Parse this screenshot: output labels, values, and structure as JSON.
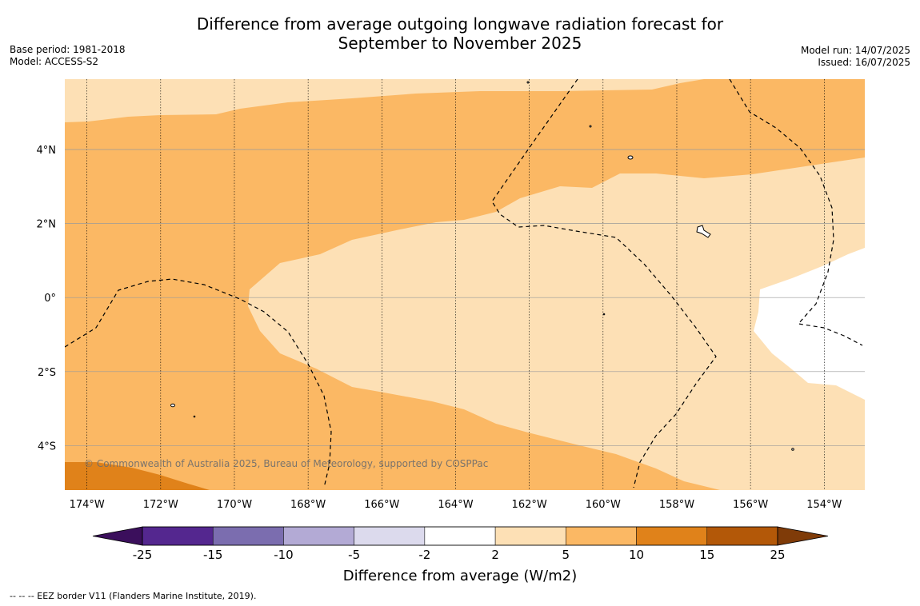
{
  "header": {
    "title_line1": "Difference from average outgoing longwave radiation forecast for",
    "title_line2": "September to November 2025",
    "base_period": "Base period: 1981-2018",
    "model": "Model: ACCESS-S2",
    "model_run": "Model run: 14/07/2025",
    "issued": "Issued: 16/07/2025"
  },
  "map": {
    "lon_range": [
      -174.6,
      -152.9
    ],
    "lat_range": [
      -5.2,
      5.9
    ],
    "lon_ticks": [
      {
        "value": -174,
        "label": "174°W"
      },
      {
        "value": -172,
        "label": "172°W"
      },
      {
        "value": -170,
        "label": "170°W"
      },
      {
        "value": -168,
        "label": "168°W"
      },
      {
        "value": -166,
        "label": "166°W"
      },
      {
        "value": -164,
        "label": "164°W"
      },
      {
        "value": -162,
        "label": "162°W"
      },
      {
        "value": -160,
        "label": "160°W"
      },
      {
        "value": -158,
        "label": "158°W"
      },
      {
        "value": -156,
        "label": "156°W"
      },
      {
        "value": -154,
        "label": "154°W"
      }
    ],
    "lat_ticks": [
      {
        "value": 4,
        "label": "4°N"
      },
      {
        "value": 2,
        "label": "2°N"
      },
      {
        "value": 0,
        "label": "0°"
      },
      {
        "value": -2,
        "label": "2°S"
      },
      {
        "value": -4,
        "label": "4°S"
      }
    ],
    "copyright": "© Commonwealth of Australia 2025, Bureau of Meteorology, supported by COSPPac"
  },
  "colorbar": {
    "title": "Difference from average (W/m2)",
    "tick_labels": [
      "-25",
      "-15",
      "-10",
      "-5",
      "-2",
      "2",
      "5",
      "10",
      "15",
      "25"
    ],
    "colors": [
      "#3b0f5c",
      "#54278f",
      "#7b6daf",
      "#b3aad5",
      "#dcdaed",
      "#ffffff",
      "#fde0b5",
      "#fbb864",
      "#e0821a",
      "#b35808",
      "#7f3b08"
    ]
  },
  "footnote": "--  --  -- EEZ border V11 (Flanders Marine Institute, 2019)."
}
